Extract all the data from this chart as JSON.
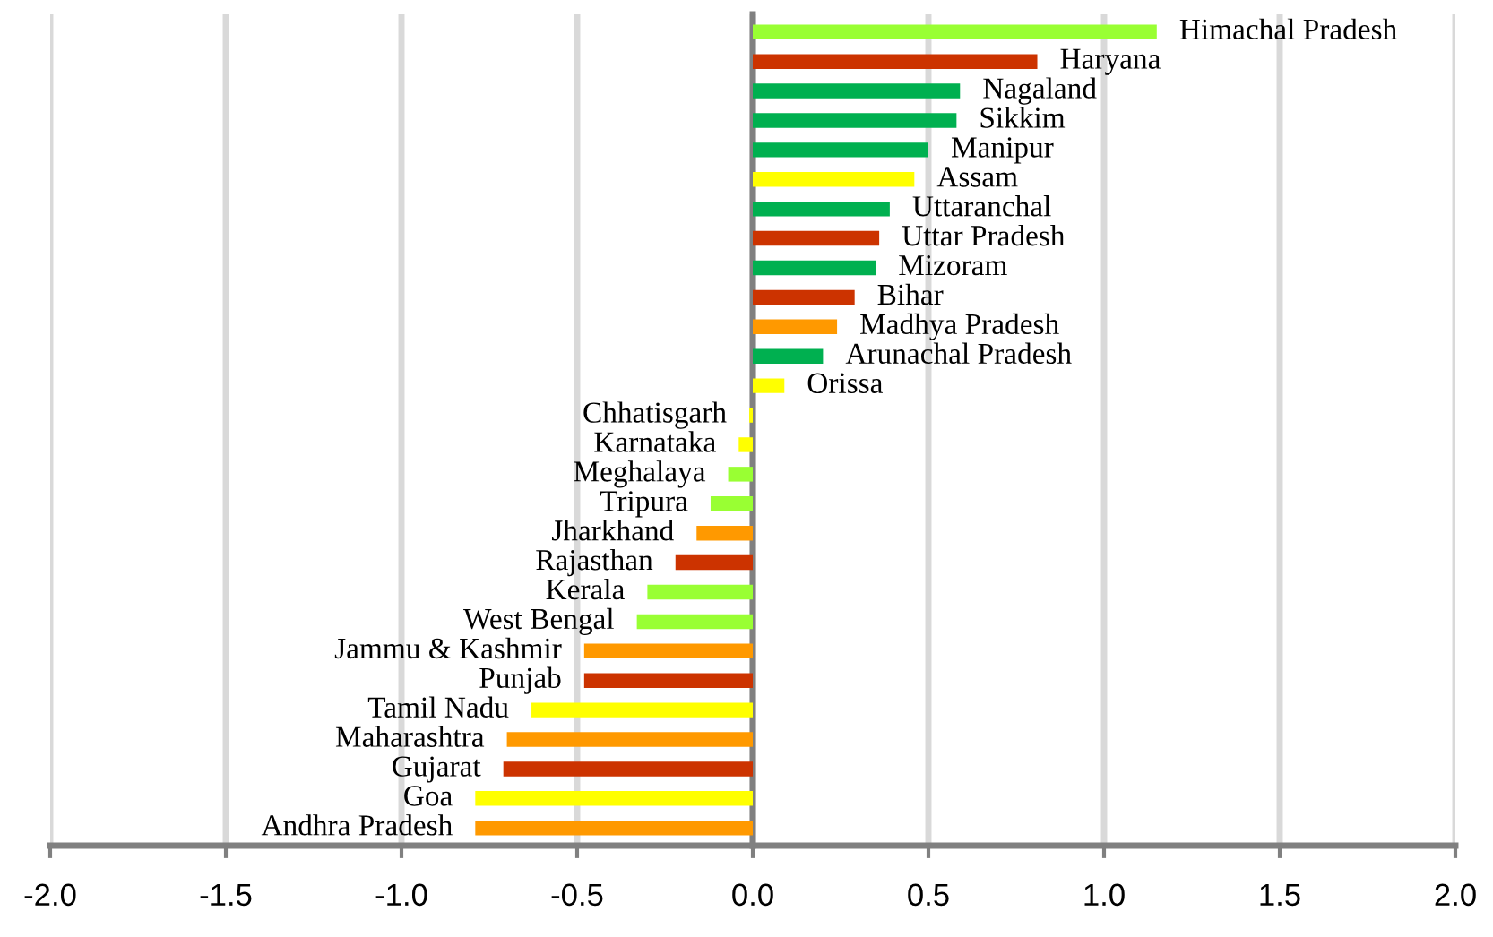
{
  "chart_data": {
    "type": "bar",
    "orientation": "horizontal",
    "categories": [
      "Himachal Pradesh",
      "Haryana",
      "Nagaland",
      "Sikkim",
      "Manipur",
      "Assam",
      "Uttaranchal",
      "Uttar Pradesh",
      "Mizoram",
      "Bihar",
      "Madhya Pradesh",
      "Arunachal Pradesh",
      "Orissa",
      "Chhatisgarh",
      "Karnataka",
      "Meghalaya",
      "Tripura",
      "Jharkhand",
      "Rajasthan",
      "Kerala",
      "West Bengal",
      "Jammu & Kashmir",
      "Punjab",
      "Tamil Nadu",
      "Maharashtra",
      "Gujarat",
      "Goa",
      "Andhra Pradesh"
    ],
    "values": [
      1.15,
      0.81,
      0.59,
      0.58,
      0.5,
      0.46,
      0.39,
      0.36,
      0.35,
      0.29,
      0.24,
      0.2,
      0.09,
      -0.01,
      -0.04,
      -0.07,
      -0.12,
      -0.16,
      -0.22,
      -0.3,
      -0.33,
      -0.48,
      -0.48,
      -0.63,
      -0.7,
      -0.71,
      -0.79,
      -0.79
    ],
    "colors": [
      "#99ff33",
      "#cc3300",
      "#00b050",
      "#00b050",
      "#00b050",
      "#ffff00",
      "#00b050",
      "#cc3300",
      "#00b050",
      "#cc3300",
      "#ff9900",
      "#00b050",
      "#ffff00",
      "#ffff00",
      "#ffff00",
      "#99ff33",
      "#99ff33",
      "#ff9900",
      "#cc3300",
      "#99ff33",
      "#99ff33",
      "#ff9900",
      "#cc3300",
      "#ffff00",
      "#ff9900",
      "#cc3300",
      "#ffff00",
      "#ff9900"
    ],
    "xlim": [
      -2,
      2
    ],
    "xticks": [
      {
        "value": -2,
        "label": "-2.0"
      },
      {
        "value": -1.5,
        "label": "-1.5"
      },
      {
        "value": -1,
        "label": "-1.0"
      },
      {
        "value": -0.5,
        "label": "-0.5"
      },
      {
        "value": 0,
        "label": "0.0"
      },
      {
        "value": 0.5,
        "label": "0.5"
      },
      {
        "value": 1,
        "label": "1.0"
      },
      {
        "value": 1.5,
        "label": "1.5"
      },
      {
        "value": 2,
        "label": "2.0"
      }
    ],
    "grid": "x",
    "tick_labels": "x"
  }
}
